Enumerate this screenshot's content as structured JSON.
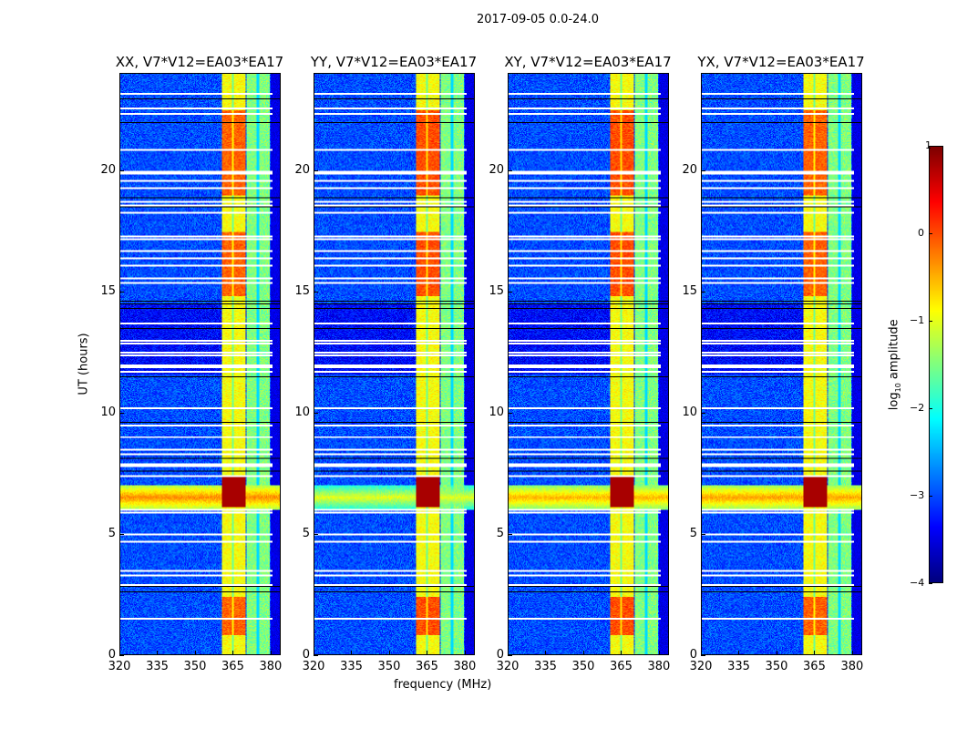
{
  "chart_data": {
    "type": "heatmap",
    "title": "2017-09-05 0.0-24.0",
    "xlabel": "frequency (MHz)",
    "ylabel": "UT (hours)",
    "xlim": [
      320,
      384
    ],
    "ylim": [
      0,
      24
    ],
    "xticks": [
      "320",
      "335",
      "350",
      "365",
      "380"
    ],
    "yticks": [
      "0",
      "5",
      "10",
      "15",
      "20"
    ],
    "panels": [
      {
        "title": "XX, V7*V12=EA03*EA17",
        "rfi_level": -0.3,
        "band_level": 0.2
      },
      {
        "title": "YY, V7*V12=EA03*EA17",
        "rfi_level": -1.0,
        "band_level": 0.3
      },
      {
        "title": "XY, V7*V12=EA03*EA17",
        "rfi_level": -0.5,
        "band_level": 0.3
      },
      {
        "title": "YX, V7*V12=EA03*EA17",
        "rfi_level": -0.4,
        "band_level": 0.2
      }
    ],
    "colorbar": {
      "label": "log10 amplitude",
      "label_base": "log",
      "label_sub": "10",
      "label_rest": " amplitude",
      "range": [
        -4,
        1
      ],
      "ticks": [
        "1",
        "0",
        "−1",
        "−2",
        "−3",
        "−4"
      ],
      "colormap": "jet"
    },
    "flagged_hours_white": [
      23.2,
      22.6,
      22.4,
      20.9,
      20.0,
      19.9,
      19.6,
      19.3,
      18.75,
      18.6,
      18.3,
      17.3,
      17.2,
      16.7,
      16.4,
      16.1,
      15.6,
      15.4,
      13.7,
      13.0,
      12.9,
      12.5,
      12.4,
      12.0,
      11.9,
      11.7,
      10.2,
      9.5,
      9.0,
      8.5,
      8.3,
      7.9,
      7.8,
      7.4,
      6.0,
      5.9,
      5.0,
      4.7,
      3.5,
      3.3,
      2.9,
      1.5
    ],
    "flagged_hours_black": [
      23.0,
      22.0,
      18.9,
      18.5,
      14.6,
      14.5,
      14.3,
      13.5,
      11.5,
      9.6,
      8.1,
      7.6,
      2.8,
      2.6
    ]
  }
}
